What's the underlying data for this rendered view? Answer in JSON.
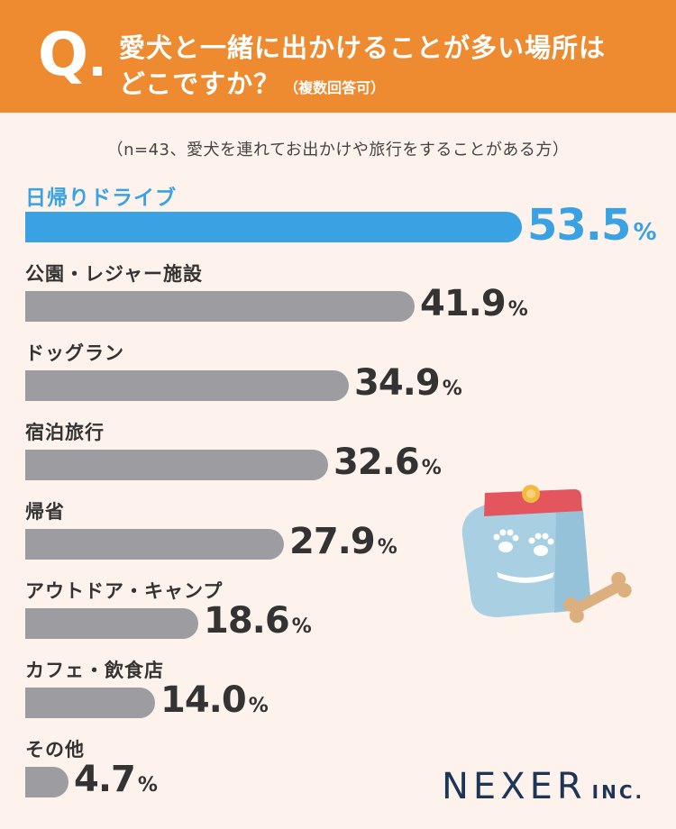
{
  "header": {
    "q_mark": "Q",
    "question_line1": "愛犬と一緒に出かけることが多い場所は",
    "question_line2": "どこですか？",
    "question_note": "（複数回答可）",
    "background_color": "#ee8a2f"
  },
  "sample_note": "（n=43、愛犬を連れてお出かけや旅行をすることがある方）",
  "chart_data": {
    "type": "bar",
    "orientation": "horizontal",
    "categories": [
      "日帰りドライブ",
      "公園・レジャー施設",
      "ドッグラン",
      "宿泊旅行",
      "帰省",
      "アウトドア・キャンプ",
      "カフェ・飲食店",
      "その他"
    ],
    "values": [
      53.5,
      41.9,
      34.9,
      32.6,
      27.9,
      18.6,
      14.0,
      4.7
    ],
    "value_labels": [
      "53.5",
      "41.9",
      "34.9",
      "32.6",
      "27.9",
      "18.6",
      "14.0",
      "4.7"
    ],
    "unit": "%",
    "highlight_index": 0,
    "colors": {
      "highlight": "#3aa2e3",
      "default": "#9c9ca1"
    },
    "grid": false,
    "legend": "none"
  },
  "illustration": {
    "icon": "dog-food-bag-icon",
    "accessory": "dog-bone-icon"
  },
  "brand": {
    "name": "NEXER",
    "suffix": "INC.",
    "color": "#1f3557"
  }
}
